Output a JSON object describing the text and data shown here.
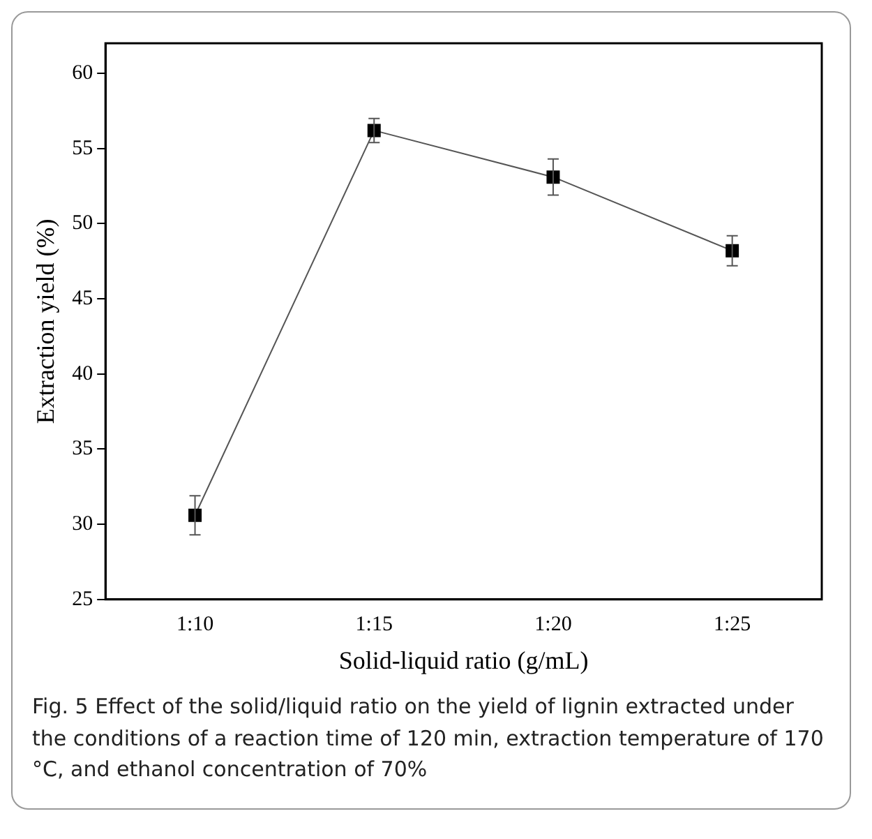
{
  "chart_data": {
    "type": "line",
    "xlabel": "Solid-liquid ratio (g/mL)",
    "ylabel": "Extraction yield (%)",
    "categories": [
      "1:10",
      "1:15",
      "1:20",
      "1:25"
    ],
    "series": [
      {
        "color": "#000000",
        "values": [
          30.6,
          56.2,
          53.1,
          48.2
        ],
        "errors": [
          1.3,
          0.8,
          1.2,
          1.0
        ]
      }
    ],
    "ylim": [
      25,
      62
    ],
    "yticks": [
      25,
      30,
      35,
      40,
      45,
      50,
      55,
      60
    ],
    "grid": false,
    "legend": false,
    "marker": "square",
    "line_style": "solid",
    "annotations": [
      "Fig. 5 Effect of the solid/liquid ratio on the yield of lignin extracted under the conditions of a reaction time of 120 min, extraction temperature of 170 °C, and ethanol concentration of 70%"
    ]
  }
}
